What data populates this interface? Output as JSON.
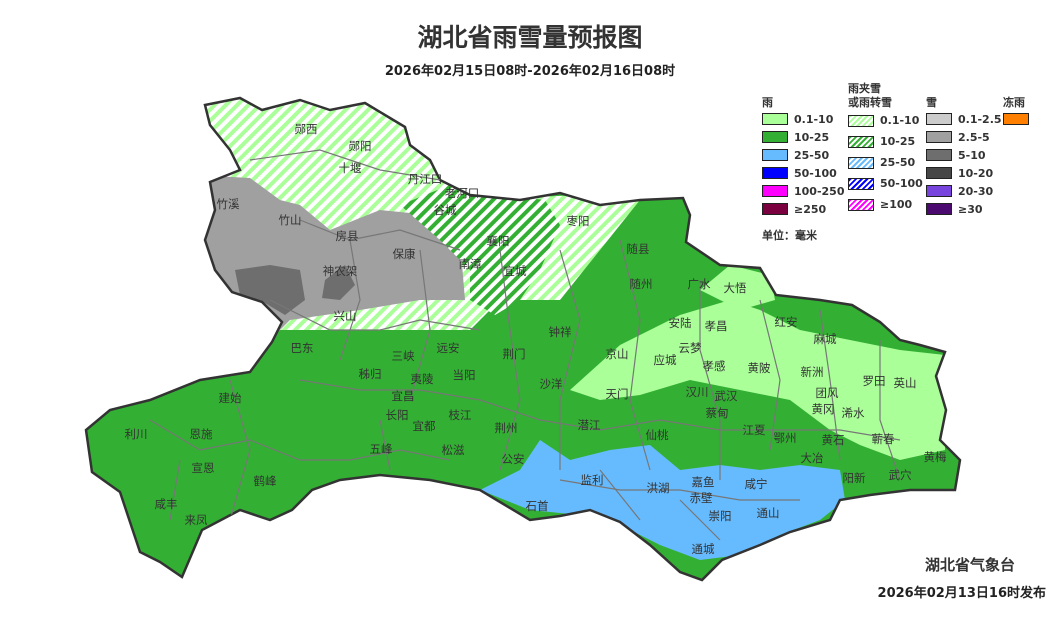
{
  "title": "湖北省雨雪量预报图",
  "subtitle": "2026年02月15日08时-2026年02月16日08时",
  "legend": {
    "rain": {
      "title": "雨",
      "items": [
        {
          "label": "0.1-10",
          "color": "#aaff99"
        },
        {
          "label": "10-25",
          "color": "#33b033"
        },
        {
          "label": "25-50",
          "color": "#66bbff"
        },
        {
          "label": "50-100",
          "color": "#0000ff"
        },
        {
          "label": "100-250",
          "color": "#ff00ff"
        },
        {
          "label": "≥250",
          "color": "#7a0040"
        }
      ]
    },
    "sleet": {
      "title_line1": "雨夹雪",
      "title_line2": "或雨转雪",
      "items": [
        {
          "label": "0.1-10",
          "color": "#aaff99",
          "pattern": "hatch"
        },
        {
          "label": "10-25",
          "color": "#33b033",
          "pattern": "hatch"
        },
        {
          "label": "25-50",
          "color": "#66bbff",
          "pattern": "hatch"
        },
        {
          "label": "50-100",
          "color": "#0000ff",
          "pattern": "hatch"
        },
        {
          "label": "≥100",
          "color": "#ff00ff",
          "pattern": "hatch"
        }
      ]
    },
    "snow": {
      "title": "雪",
      "items": [
        {
          "label": "0.1-2.5",
          "color": "#cccccc"
        },
        {
          "label": "2.5-5",
          "color": "#a0a0a0"
        },
        {
          "label": "5-10",
          "color": "#6e6e6e"
        },
        {
          "label": "10-20",
          "color": "#464646"
        },
        {
          "label": "20-30",
          "color": "#7744dd"
        },
        {
          "label": "≥30",
          "color": "#4a0a70"
        }
      ]
    },
    "freezing_rain": {
      "title": "冻雨",
      "items": [
        {
          "label": "",
          "color": "#ff8000"
        }
      ]
    },
    "unit": "单位：毫米"
  },
  "cities": [
    "郧西",
    "郧阳",
    "十堰",
    "丹江口",
    "老河口",
    "谷城",
    "竹溪",
    "竹山",
    "房县",
    "保康",
    "神农架",
    "南漳",
    "襄阳",
    "宜城",
    "枣阳",
    "随县",
    "随州",
    "广水",
    "大悟",
    "兴山",
    "巴东",
    "三峡",
    "远安",
    "秭归",
    "夷陵",
    "当阳",
    "宜昌",
    "荆门",
    "钟祥",
    "京山",
    "安陆",
    "孝昌",
    "应城",
    "云梦",
    "孝感",
    "红安",
    "麻城",
    "黄陂",
    "新洲",
    "罗田",
    "英山",
    "团风",
    "黄冈",
    "浠水",
    "天门",
    "汉川",
    "武汉",
    "蔡甸",
    "沙洋",
    "潜江",
    "仙桃",
    "江夏",
    "鄂州",
    "黄石",
    "蕲春",
    "大冶",
    "黄梅",
    "阳新",
    "武穴",
    "利川",
    "建始",
    "恩施",
    "宣恩",
    "鹤峰",
    "咸丰",
    "来凤",
    "长阳",
    "五峰",
    "宜都",
    "枝江",
    "松滋",
    "荆州",
    "公安",
    "石首",
    "监利",
    "洪湖",
    "嘉鱼",
    "咸宁",
    "赤壁",
    "崇阳",
    "通山",
    "通城"
  ],
  "issuer": "湖北省气象台",
  "issued": "2026年02月13日16时发布"
}
